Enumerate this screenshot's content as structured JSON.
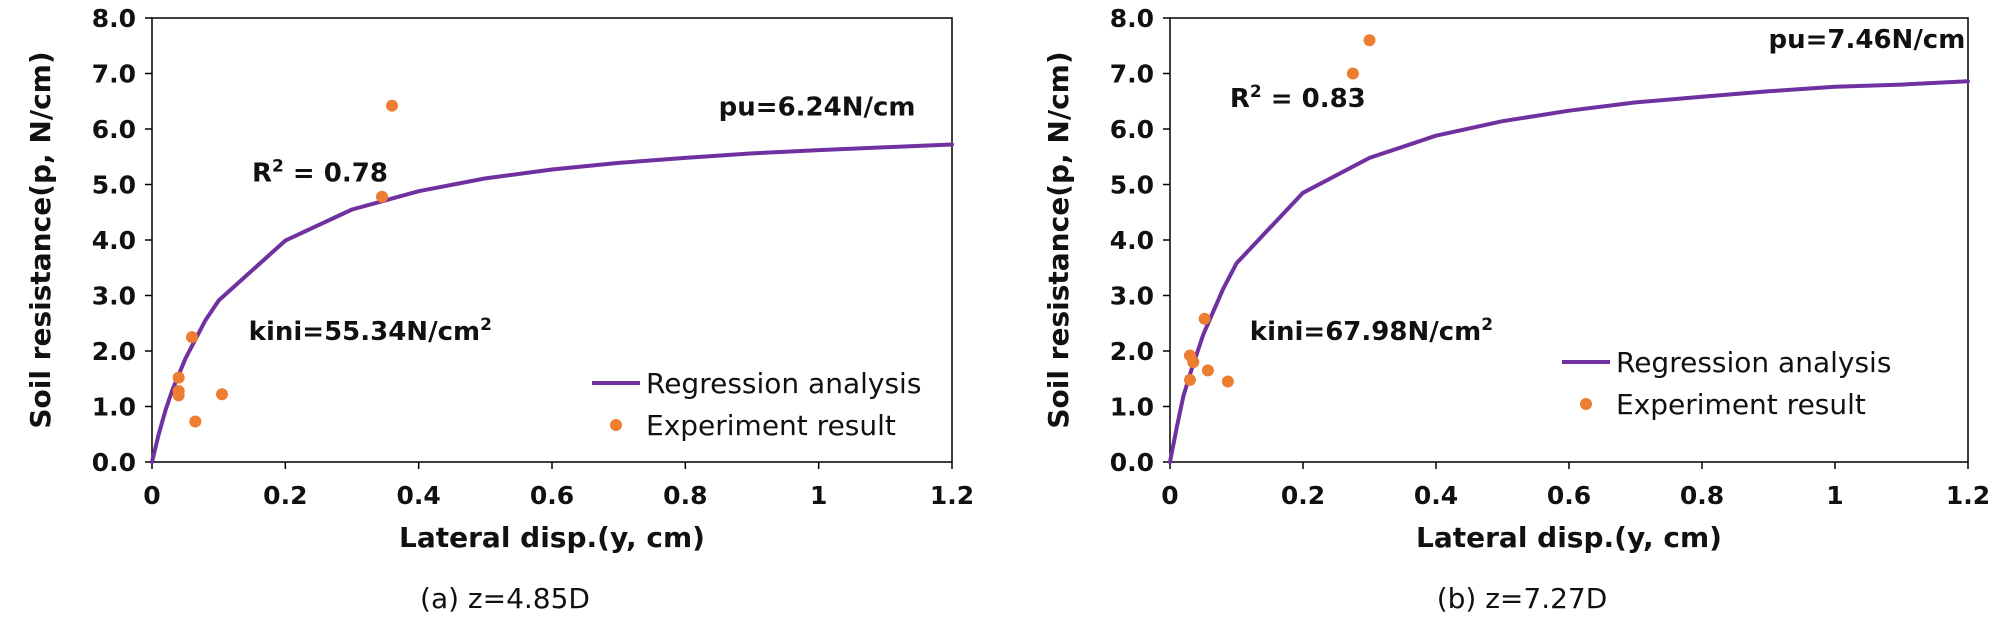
{
  "colors": {
    "regression": "#7030A0",
    "experiment": "#ED7D31",
    "axis": "#000000",
    "text": "#111111"
  },
  "chart_data": [
    {
      "type": "line",
      "caption": "(a)  z=4.85D",
      "xlabel": "Lateral disp.(y, cm)",
      "ylabel": "Soil resistance(p, N/cm)",
      "xlim": [
        0,
        1.2
      ],
      "ylim": [
        0,
        8
      ],
      "x_ticks": [
        0,
        0.2,
        0.4,
        0.6,
        0.8,
        1,
        1.2
      ],
      "x_tick_labels": [
        "0",
        "0.2",
        "0.4",
        "0.6",
        "0.8",
        "1",
        "1.2"
      ],
      "y_ticks": [
        0,
        1,
        2,
        3,
        4,
        5,
        6,
        7,
        8
      ],
      "y_tick_labels": [
        "0.0",
        "1.0",
        "2.0",
        "3.0",
        "4.0",
        "5.0",
        "6.0",
        "7.0",
        "8.0"
      ],
      "grid": false,
      "legend": {
        "placement": "bottom-right",
        "entries": [
          "Regression analysis",
          "Experiment result"
        ]
      },
      "series": [
        {
          "name": "Regression analysis",
          "kind": "line",
          "x": [
            0,
            0.01,
            0.02,
            0.03,
            0.05,
            0.08,
            0.1,
            0.2,
            0.3,
            0.4,
            0.5,
            0.6,
            0.7,
            0.8,
            0.9,
            1.0,
            1.1,
            1.2
          ],
          "y": [
            0,
            0.5,
            0.92,
            1.28,
            1.86,
            2.55,
            2.91,
            3.99,
            4.55,
            4.88,
            5.11,
            5.27,
            5.39,
            5.48,
            5.56,
            5.62,
            5.67,
            5.72
          ]
        },
        {
          "name": "Experiment result",
          "kind": "scatter",
          "x": [
            0.04,
            0.04,
            0.04,
            0.06,
            0.065,
            0.105,
            0.345,
            0.36
          ],
          "y": [
            1.2,
            1.28,
            1.52,
            2.25,
            0.73,
            1.22,
            4.78,
            6.42
          ]
        }
      ],
      "annotations": [
        {
          "text": "pu=6.24N/cm",
          "x": 0.85,
          "y": 6.24
        },
        {
          "text": "R",
          "sup": "2",
          "rest": " = 0.78",
          "x": 0.15,
          "y": 5.05
        },
        {
          "text": "kini=55.34N/cm",
          "sup": "2",
          "x": 0.145,
          "y": 2.2
        }
      ]
    },
    {
      "type": "line",
      "caption": "(b)  z=7.27D",
      "xlabel": "Lateral disp.(y, cm)",
      "ylabel": "Soil resistance(p, N/cm)",
      "xlim": [
        0,
        1.2
      ],
      "ylim": [
        0,
        8
      ],
      "x_ticks": [
        0,
        0.2,
        0.4,
        0.6,
        0.8,
        1,
        1.2
      ],
      "x_tick_labels": [
        "0",
        "0.2",
        "0.4",
        "0.6",
        "0.8",
        "1",
        "1.2"
      ],
      "y_ticks": [
        0,
        1,
        2,
        3,
        4,
        5,
        6,
        7,
        8
      ],
      "y_tick_labels": [
        "0.0",
        "1.0",
        "2.0",
        "3.0",
        "4.0",
        "5.0",
        "6.0",
        "7.0",
        "8.0"
      ],
      "grid": false,
      "legend": {
        "placement": "center-right",
        "entries": [
          "Regression analysis",
          "Experiment result"
        ]
      },
      "series": [
        {
          "name": "Regression analysis",
          "kind": "line",
          "x": [
            0,
            0.01,
            0.02,
            0.03,
            0.05,
            0.08,
            0.1,
            0.2,
            0.3,
            0.4,
            0.5,
            0.6,
            0.7,
            0.8,
            0.9,
            1.0,
            1.1,
            1.2
          ],
          "y": [
            0,
            0.62,
            1.18,
            1.58,
            2.3,
            3.12,
            3.58,
            4.85,
            5.48,
            5.88,
            6.14,
            6.33,
            6.48,
            6.58,
            6.68,
            6.76,
            6.8,
            6.86
          ]
        },
        {
          "name": "Experiment result",
          "kind": "scatter",
          "x": [
            0.03,
            0.03,
            0.035,
            0.052,
            0.057,
            0.087,
            0.275,
            0.3
          ],
          "y": [
            1.48,
            1.92,
            1.8,
            2.58,
            1.65,
            1.45,
            7.0,
            7.6
          ]
        }
      ],
      "annotations": [
        {
          "text": "pu=7.46N/cm",
          "x": 0.9,
          "y": 7.46
        },
        {
          "text": "R",
          "sup": "2",
          "rest": " = 0.83",
          "x": 0.09,
          "y": 6.4
        },
        {
          "text": "kini=67.98N/cm",
          "sup": "2",
          "x": 0.12,
          "y": 2.2
        }
      ]
    }
  ]
}
